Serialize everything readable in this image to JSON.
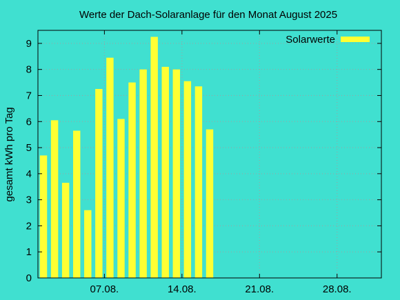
{
  "colors": {
    "background": "#40e0d0",
    "bar": "#ffff33",
    "grid": "#a0a0a0",
    "axis": "#000000"
  },
  "chart_data": {
    "type": "bar",
    "title": "Werte der Dach-Solaranlage für den Monat August 2025",
    "xlabel": "",
    "ylabel": "gesamt kWh pro Tag",
    "legend": {
      "position": "top-right",
      "entries": [
        "Solarwerte"
      ]
    },
    "grid": true,
    "xlim": [
      1,
      32
    ],
    "ylim": [
      0,
      9.5
    ],
    "yticks": [
      0,
      1,
      2,
      3,
      4,
      5,
      6,
      7,
      8,
      9
    ],
    "xticks": [
      {
        "day": 7,
        "label": "07.08."
      },
      {
        "day": 14,
        "label": "14.08."
      },
      {
        "day": 21,
        "label": "21.08."
      },
      {
        "day": 28,
        "label": "28.08."
      }
    ],
    "series": [
      {
        "name": "Solarwerte",
        "x": [
          1,
          2,
          3,
          4,
          5,
          6,
          7,
          8,
          9,
          10,
          11,
          12,
          13,
          14,
          15,
          16,
          17
        ],
        "values": [
          4.7,
          6.05,
          3.65,
          5.65,
          2.6,
          7.25,
          8.45,
          6.1,
          7.5,
          8.0,
          9.25,
          8.1,
          8.0,
          7.55,
          7.35,
          5.7,
          0
        ]
      }
    ]
  }
}
